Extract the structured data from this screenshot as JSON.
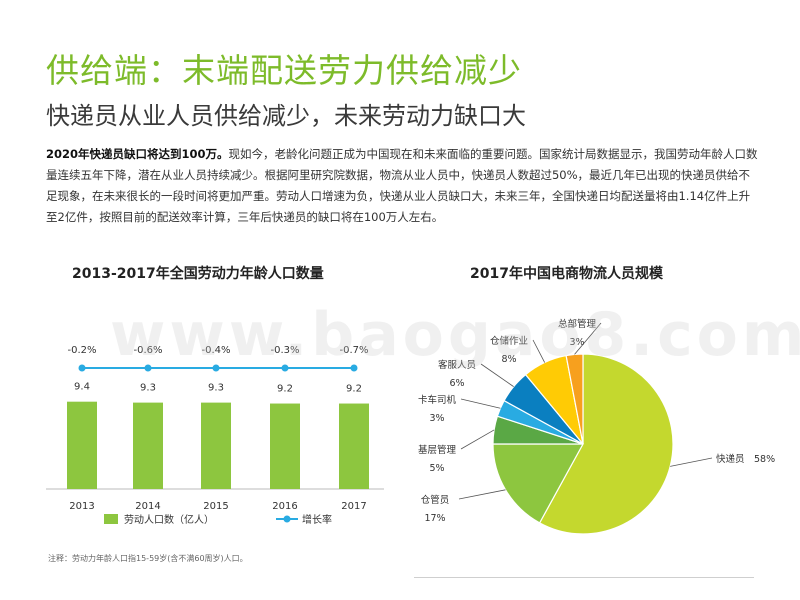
{
  "header": {
    "title": "供给端：末端配送劳力供给减少",
    "subtitle": "快递员从业人员供给减少，未来劳动力缺口大"
  },
  "intro": {
    "bold": "2020年快递员缺口将达到100万。",
    "text": "现如今，老龄化问题正成为中国现在和未来面临的重要问题。国家统计局数据显示，我国劳动年龄人口数量连续五年下降，潜在从业人员持续减少。根据阿里研究院数据，物流从业人员中，快递员人数超过50%，最近几年已出现的快递员供给不足现象，在未来很长的一段时间将更加严重。劳动人口增速为负，快递从业人员缺口大，未来三年，全国快递日均配送量将由1.14亿件上升至2亿件，按照目前的配送效率计算，三年后快递员的缺口将在100万人左右。"
  },
  "watermark": "www.baogao8.com",
  "note": "注释：劳动力年龄人口指15-59岁(含不满60周岁)人口。",
  "colors": {
    "accent": "#7dbb2a",
    "bar": "#8dc63f",
    "line": "#29abe2"
  },
  "chart_data": [
    {
      "type": "bar",
      "title": "2013-2017年全国劳动力年龄人口数量",
      "categories": [
        "2013",
        "2014",
        "2015",
        "2016",
        "2017"
      ],
      "series": [
        {
          "name": "劳动人口数（亿人）",
          "type": "bar",
          "values": [
            9.4,
            9.3,
            9.3,
            9.2,
            9.2
          ],
          "labels": [
            "9.4",
            "9.3",
            "9.3",
            "9.2",
            "9.2"
          ]
        },
        {
          "name": "增长率",
          "type": "line",
          "values": [
            -0.2,
            -0.6,
            -0.4,
            -0.3,
            -0.7
          ],
          "labels": [
            "-0.2%",
            "-0.6%",
            "-0.4%",
            "-0.3%",
            "-0.7%"
          ]
        }
      ],
      "legend": "bottom"
    },
    {
      "type": "pie",
      "title": "2017年中国电商物流人员规模",
      "slices": [
        {
          "label": "快递员",
          "value": 58,
          "pct": "58%",
          "color": "#c4d82e"
        },
        {
          "label": "仓管员",
          "value": 17,
          "pct": "17%",
          "color": "#8dc63f"
        },
        {
          "label": "基层管理",
          "value": 5,
          "pct": "5%",
          "color": "#5aa845"
        },
        {
          "label": "卡车司机",
          "value": 3,
          "pct": "3%",
          "color": "#29abe2"
        },
        {
          "label": "客服人员",
          "value": 6,
          "pct": "6%",
          "color": "#0a7fc0"
        },
        {
          "label": "仓储作业",
          "value": 8,
          "pct": "8%",
          "color": "#ffcb05"
        },
        {
          "label": "总部管理",
          "value": 3,
          "pct": "3%",
          "color": "#f7a01e"
        }
      ]
    }
  ]
}
